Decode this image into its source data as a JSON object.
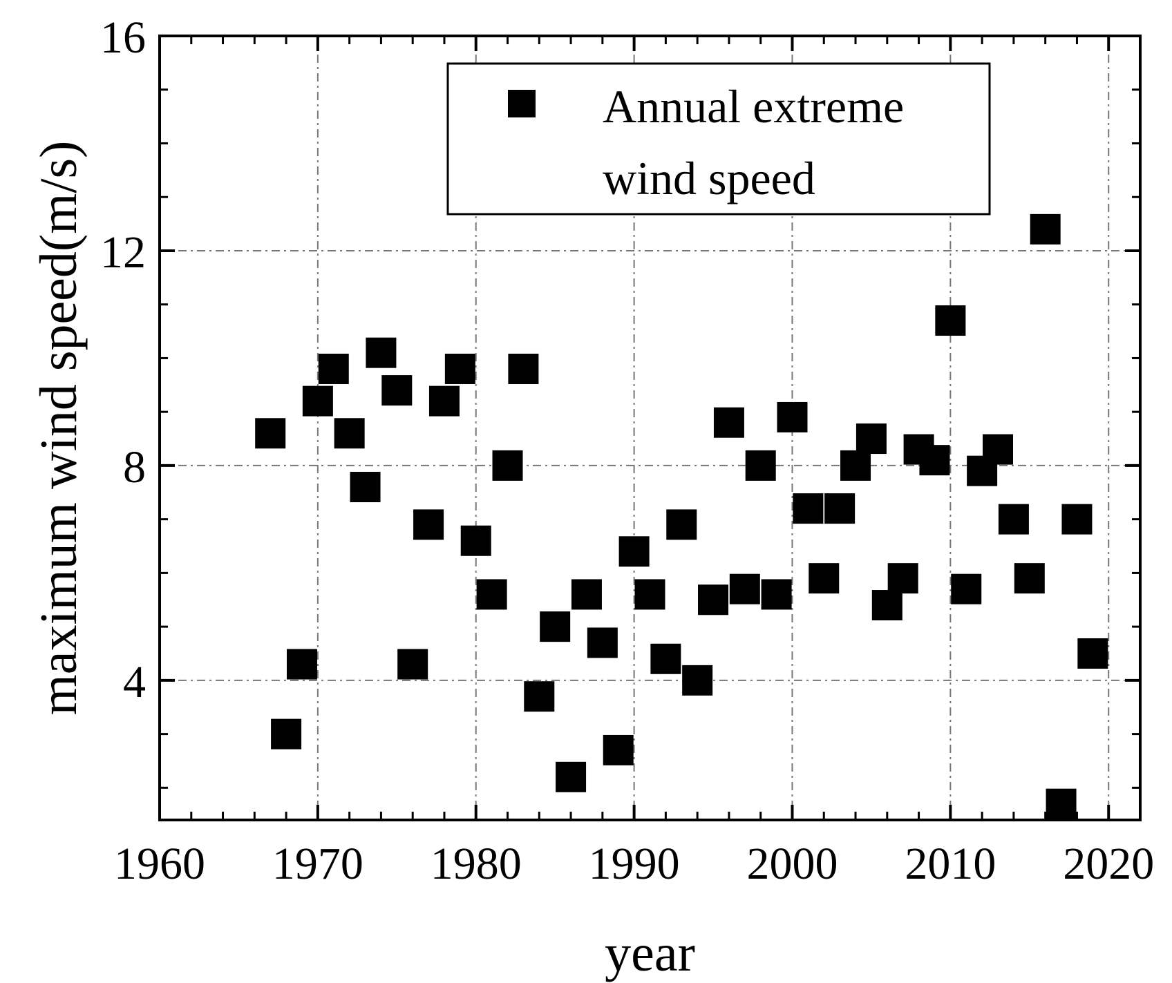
{
  "chart_data": {
    "type": "scatter",
    "title": "",
    "xlabel": "year",
    "ylabel": "maximum wind speed(m/s)",
    "xlim": [
      1960,
      2022
    ],
    "ylim": [
      1.4,
      16
    ],
    "xticks": [
      1960,
      1970,
      1980,
      1990,
      2000,
      2010,
      2020
    ],
    "xtick_labels": [
      "1960",
      "1970",
      "1980",
      "1990",
      "2000",
      "2010",
      "2020"
    ],
    "yticks": [
      4,
      8,
      12,
      16
    ],
    "ytick_labels": [
      "4",
      "8",
      "12",
      "16"
    ],
    "grid": true,
    "legend": {
      "position": "top-right",
      "line1": "Annual extreme",
      "line2": "wind speed"
    },
    "series": [
      {
        "name": "Annual extreme wind speed",
        "marker": "square",
        "color": "#000000",
        "x": [
          1967,
          1968,
          1969,
          1970,
          1971,
          1972,
          1973,
          1974,
          1975,
          1976,
          1977,
          1978,
          1979,
          1980,
          1981,
          1982,
          1983,
          1984,
          1985,
          1986,
          1987,
          1988,
          1989,
          1990,
          1991,
          1992,
          1993,
          1994,
          1995,
          1996,
          1997,
          1998,
          1999,
          2000,
          2001,
          2002,
          2003,
          2004,
          2005,
          2006,
          2007,
          2008,
          2009,
          2010,
          2011,
          2012,
          2013,
          2014,
          2015,
          2016,
          2017,
          2018,
          2019
        ],
        "y": [
          8.6,
          3.0,
          4.3,
          9.2,
          9.8,
          8.6,
          7.6,
          10.1,
          9.4,
          4.3,
          6.9,
          9.2,
          9.8,
          6.6,
          5.6,
          8.0,
          9.8,
          3.7,
          5.0,
          2.2,
          5.6,
          4.7,
          2.7,
          6.4,
          5.6,
          4.4,
          6.9,
          4.0,
          5.5,
          8.8,
          5.7,
          8.0,
          5.6,
          8.9,
          7.2,
          5.9,
          7.2,
          8.0,
          8.5,
          5.4,
          5.9,
          8.3,
          8.1,
          10.7,
          5.7,
          7.9,
          8.3,
          7.0,
          5.9,
          12.4,
          1.7,
          7.0,
          4.5
        ]
      }
    ]
  }
}
